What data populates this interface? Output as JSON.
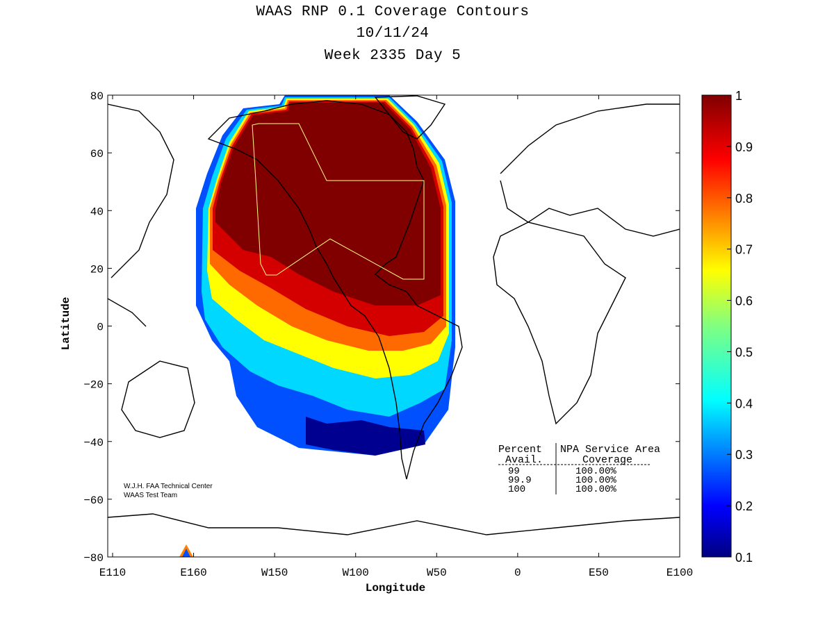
{
  "title": {
    "line1": "WAAS RNP 0.1 Coverage Contours",
    "line2": "10/11/24",
    "line3": "Week 2335 Day 5"
  },
  "axes": {
    "xlabel": "Longitude",
    "ylabel": "Latitude",
    "xticks": [
      {
        "label": "E110",
        "lon": 110
      },
      {
        "label": "E160",
        "lon": 160
      },
      {
        "label": "W150",
        "lon": 210
      },
      {
        "label": "W100",
        "lon": 260
      },
      {
        "label": "W50",
        "lon": 310
      },
      {
        "label": "0",
        "lon": 360
      },
      {
        "label": "E50",
        "lon": 410
      },
      {
        "label": "E100",
        "lon": 460
      }
    ],
    "yticks": [
      "80",
      "60",
      "40",
      "20",
      "0",
      "−20",
      "−40",
      "−60",
      "−80"
    ],
    "xlim": [
      107,
      460
    ],
    "ylim": [
      -80,
      80
    ]
  },
  "colorbar": {
    "ticks": [
      "1",
      "0.9",
      "0.8",
      "0.7",
      "0.6",
      "0.5",
      "0.4",
      "0.3",
      "0.2",
      "0.1"
    ],
    "range": [
      0.1,
      1
    ],
    "colormap": "jet"
  },
  "credit": {
    "line1": "W.J.H. FAA Technical Center",
    "line2": "WAAS Test Team"
  },
  "stats_table": {
    "header1": [
      "Percent",
      "NPA Service Area"
    ],
    "header2": [
      "Avail.",
      "Coverage"
    ],
    "rows": [
      [
        "99",
        "100.00%"
      ],
      [
        "99.9",
        "100.00%"
      ],
      [
        "100",
        "100.00%"
      ]
    ]
  },
  "colors": {
    "dark_red": "#800000",
    "red": "#cc0000",
    "orange": "#ff8000",
    "yellow": "#ffff00",
    "cyan": "#00e0ff",
    "blue": "#0050ff",
    "navy": "#000090",
    "service_area_outline": "#ffff80",
    "coastline": "#000000"
  }
}
